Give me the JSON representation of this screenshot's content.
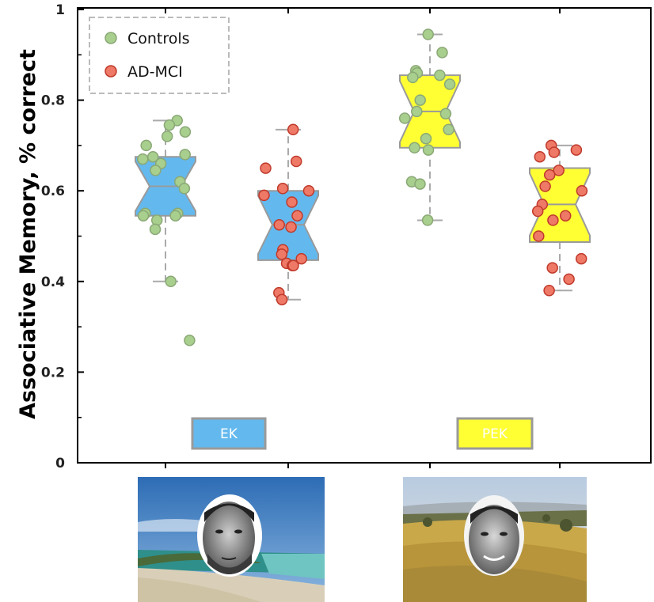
{
  "chart_data": {
    "type": "box",
    "title": "",
    "xlabel": "",
    "ylabel": "Associative Memory, % correct",
    "ylim": [
      0,
      1
    ],
    "y_ticks": [
      {
        "value": 0,
        "label": "0"
      },
      {
        "value": 0.2,
        "label": "0.2"
      },
      {
        "value": 0.4,
        "label": "0.4"
      },
      {
        "value": 0.6,
        "label": "0.6"
      },
      {
        "value": 0.8,
        "label": "0.8"
      },
      {
        "value": 1,
        "label": "1"
      }
    ],
    "legend_position": "top-left",
    "legend": [
      {
        "label": "Controls",
        "color": "#a8cf8d",
        "stroke": "#8aa876"
      },
      {
        "label": "AD-MCI",
        "color": "#ee7966",
        "stroke": "#c0392b"
      }
    ],
    "conditions": [
      {
        "label": "EK",
        "color": "#63b9ee",
        "image": "beach-scene-with-face"
      },
      {
        "label": "PEK",
        "color": "#ffff33",
        "image": "grassland-scene-with-face"
      }
    ],
    "groups": [
      {
        "condition": "EK",
        "series": "Controls",
        "box_color": "#63b9ee",
        "stats": {
          "min": 0.4,
          "q1": 0.545,
          "median": 0.61,
          "q3": 0.675,
          "max": 0.755
        },
        "points": [
          0.755,
          0.745,
          0.73,
          0.72,
          0.7,
          0.68,
          0.675,
          0.67,
          0.66,
          0.645,
          0.62,
          0.605,
          0.55,
          0.55,
          0.545,
          0.545,
          0.535,
          0.515,
          0.4,
          0.27
        ]
      },
      {
        "condition": "EK",
        "series": "AD-MCI",
        "box_color": "#63b9ee",
        "stats": {
          "min": 0.36,
          "q1": 0.447,
          "median": 0.525,
          "q3": 0.6,
          "max": 0.735
        },
        "points": [
          0.735,
          0.665,
          0.65,
          0.605,
          0.6,
          0.59,
          0.575,
          0.545,
          0.525,
          0.52,
          0.47,
          0.46,
          0.45,
          0.44,
          0.435,
          0.435,
          0.375,
          0.36
        ]
      },
      {
        "condition": "PEK",
        "series": "Controls",
        "box_color": "#ffff33",
        "stats": {
          "min": 0.535,
          "q1": 0.695,
          "median": 0.775,
          "q3": 0.855,
          "max": 0.945
        },
        "points": [
          0.945,
          0.905,
          0.865,
          0.86,
          0.855,
          0.85,
          0.835,
          0.8,
          0.775,
          0.77,
          0.76,
          0.735,
          0.715,
          0.695,
          0.69,
          0.62,
          0.615,
          0.535
        ]
      },
      {
        "condition": "PEK",
        "series": "AD-MCI",
        "box_color": "#ffff33",
        "stats": {
          "min": 0.38,
          "q1": 0.487,
          "median": 0.57,
          "q3": 0.65,
          "max": 0.7
        },
        "points": [
          0.7,
          0.69,
          0.685,
          0.675,
          0.645,
          0.635,
          0.61,
          0.6,
          0.57,
          0.555,
          0.545,
          0.535,
          0.5,
          0.45,
          0.43,
          0.405,
          0.38
        ]
      }
    ]
  }
}
